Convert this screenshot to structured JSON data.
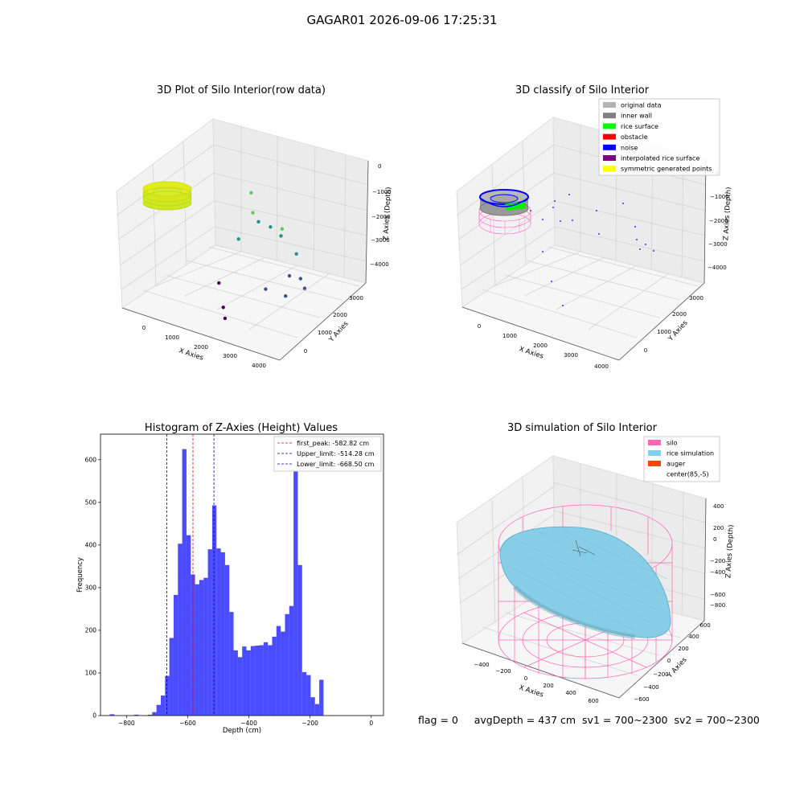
{
  "figure": {
    "title": "GAGAR01 2026-09-06 17:25:31",
    "footer": {
      "flag": "flag = 0",
      "avg_depth": "avgDepth = 437 cm",
      "sv1": "sv1 = 700~2300",
      "sv2": "sv2 = 700~2300"
    }
  },
  "chart_data": [
    {
      "type": "scatter",
      "projection": "3d",
      "title": "3D Plot of Silo Interior(row data)",
      "xlabel": "X Axies",
      "ylabel": "Y Axies",
      "zlabel": "Z Axies (Depth)",
      "xticks": [
        "0",
        "1000",
        "2000",
        "3000",
        "4000"
      ],
      "yticks": [
        "0",
        "1000",
        "2000",
        "3000"
      ],
      "zticks": [
        "0",
        "−1000",
        "−2000",
        "−3000",
        "−4000"
      ],
      "colormap": "viridis",
      "points": [
        {
          "x": 1000,
          "y": 3200,
          "z": -1000
        },
        {
          "x": 1200,
          "y": 3000,
          "z": -1500
        },
        {
          "x": 1300,
          "y": 3100,
          "z": -1800
        },
        {
          "x": 1600,
          "y": 3200,
          "z": -1900
        },
        {
          "x": 900,
          "y": 2800,
          "z": -2400
        },
        {
          "x": 2000,
          "y": 3100,
          "z": -2000
        },
        {
          "x": 2400,
          "y": 2600,
          "z": -1400
        },
        {
          "x": 2700,
          "y": 2800,
          "z": -2200
        },
        {
          "x": 2700,
          "y": 2500,
          "z": -2800
        },
        {
          "x": 2900,
          "y": 2700,
          "z": -2900
        },
        {
          "x": 3100,
          "y": 2600,
          "z": -3100
        },
        {
          "x": 800,
          "y": 2100,
          "z": -3600
        },
        {
          "x": 1300,
          "y": 1600,
          "z": -4000
        },
        {
          "x": 1500,
          "y": 1400,
          "z": -4200
        },
        {
          "x": 2400,
          "y": 1900,
          "z": -3100
        },
        {
          "x": 2800,
          "y": 2200,
          "z": -3300
        }
      ]
    },
    {
      "type": "scatter",
      "projection": "3d",
      "title": "3D classify of Silo Interior",
      "xlabel": "X Axies",
      "ylabel": "Y Axies",
      "zlabel": "Z Axies (Depth)",
      "xticks": [
        "0",
        "1000",
        "2000",
        "3000",
        "4000"
      ],
      "yticks": [
        "0",
        "1000",
        "2000",
        "3000"
      ],
      "zticks": [
        "0",
        "−1000",
        "−2000",
        "−3000",
        "−4000"
      ],
      "legend": [
        {
          "label": "original data",
          "color": "#b3b3b3"
        },
        {
          "label": "inner wall",
          "color": "#808080"
        },
        {
          "label": "rice surface",
          "color": "#00ff00"
        },
        {
          "label": "obstacle",
          "color": "#ff0000"
        },
        {
          "label": "noise",
          "color": "#0000ff"
        },
        {
          "label": "interpolated rice surface",
          "color": "#800080"
        },
        {
          "label": "symmetric generated points",
          "color": "#ffff00"
        }
      ],
      "legend_position": "top-right"
    },
    {
      "type": "bar",
      "title": "Histogram of Z-Axies (Height) Values",
      "xlabel": "Depth (cm)",
      "ylabel": "Frequency",
      "xlim": [
        -885,
        40
      ],
      "ylim": [
        0,
        660
      ],
      "xticks": [
        -800,
        -600,
        -400,
        -200,
        0
      ],
      "yticks": [
        0,
        100,
        200,
        300,
        400,
        500,
        600
      ],
      "bar_color": "#0000ff",
      "bins": [
        {
          "x0": -855,
          "x1": -840,
          "value": 3
        },
        {
          "x0": -775,
          "x1": -760,
          "value": 2
        },
        {
          "x0": -730,
          "x1": -716,
          "value": 2
        },
        {
          "x0": -716,
          "x1": -702,
          "value": 8
        },
        {
          "x0": -702,
          "x1": -688,
          "value": 25
        },
        {
          "x0": -688,
          "x1": -674,
          "value": 47
        },
        {
          "x0": -674,
          "x1": -660,
          "value": 93
        },
        {
          "x0": -660,
          "x1": -646,
          "value": 182
        },
        {
          "x0": -646,
          "x1": -632,
          "value": 283
        },
        {
          "x0": -632,
          "x1": -618,
          "value": 403
        },
        {
          "x0": -618,
          "x1": -604,
          "value": 625
        },
        {
          "x0": -604,
          "x1": -590,
          "value": 423
        },
        {
          "x0": -590,
          "x1": -576,
          "value": 331
        },
        {
          "x0": -576,
          "x1": -562,
          "value": 308
        },
        {
          "x0": -562,
          "x1": -548,
          "value": 318
        },
        {
          "x0": -548,
          "x1": -534,
          "value": 323
        },
        {
          "x0": -534,
          "x1": -520,
          "value": 390
        },
        {
          "x0": -520,
          "x1": -506,
          "value": 493
        },
        {
          "x0": -506,
          "x1": -492,
          "value": 392
        },
        {
          "x0": -492,
          "x1": -478,
          "value": 383
        },
        {
          "x0": -478,
          "x1": -464,
          "value": 353
        },
        {
          "x0": -464,
          "x1": -450,
          "value": 243
        },
        {
          "x0": -450,
          "x1": -436,
          "value": 153
        },
        {
          "x0": -436,
          "x1": -422,
          "value": 137
        },
        {
          "x0": -422,
          "x1": -408,
          "value": 162
        },
        {
          "x0": -408,
          "x1": -394,
          "value": 153
        },
        {
          "x0": -394,
          "x1": -380,
          "value": 163
        },
        {
          "x0": -380,
          "x1": -366,
          "value": 164
        },
        {
          "x0": -366,
          "x1": -352,
          "value": 165
        },
        {
          "x0": -352,
          "x1": -338,
          "value": 172
        },
        {
          "x0": -338,
          "x1": -324,
          "value": 165
        },
        {
          "x0": -324,
          "x1": -310,
          "value": 185
        },
        {
          "x0": -310,
          "x1": -296,
          "value": 210
        },
        {
          "x0": -296,
          "x1": -282,
          "value": 197
        },
        {
          "x0": -282,
          "x1": -268,
          "value": 238
        },
        {
          "x0": -268,
          "x1": -254,
          "value": 257
        },
        {
          "x0": -254,
          "x1": -240,
          "value": 622
        },
        {
          "x0": -240,
          "x1": -226,
          "value": 353
        },
        {
          "x0": -226,
          "x1": -212,
          "value": 102
        },
        {
          "x0": -212,
          "x1": -198,
          "value": 95
        },
        {
          "x0": -198,
          "x1": -184,
          "value": 43
        },
        {
          "x0": -184,
          "x1": -170,
          "value": 27
        },
        {
          "x0": -170,
          "x1": -156,
          "value": 84
        }
      ],
      "vlines": [
        {
          "label": "first_peak: -582.82 cm",
          "x": -582.82,
          "color": "#ff0000"
        },
        {
          "label": "Upper_limit: -514.28 cm",
          "x": -514.28,
          "color": "#0000aa"
        },
        {
          "label": "Lower_limit: -668.50 cm",
          "x": -668.5,
          "color": "#0000aa"
        }
      ],
      "legend_position": "top-right"
    },
    {
      "type": "surface",
      "projection": "3d",
      "title": "3D simulation of Silo Interior",
      "xlabel": "X Axies",
      "ylabel": "Y Axies",
      "zlabel": "Z Axies (Depth)",
      "xticks": [
        "−400",
        "−200",
        "0",
        "200",
        "400",
        "600"
      ],
      "yticks": [
        "−600",
        "−400",
        "−200",
        "0",
        "200",
        "400",
        "600"
      ],
      "zticks": [
        "400",
        "200",
        "0",
        "−200",
        "−400",
        "−600",
        "−800"
      ],
      "legend": [
        {
          "label": "silo",
          "color": "#ff69b4"
        },
        {
          "label": "rice simulation",
          "color": "#87ceeb"
        },
        {
          "label": "auger",
          "color": "#ff4500"
        },
        {
          "label": "center(85,-5)",
          "color": ""
        }
      ],
      "legend_position": "top-right"
    }
  ]
}
